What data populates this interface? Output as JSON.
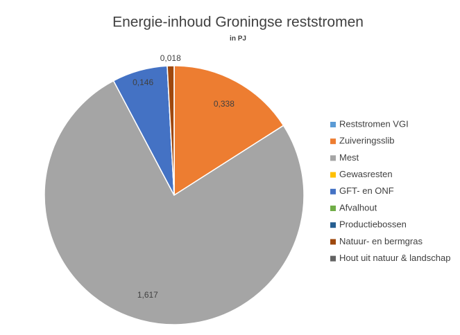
{
  "chart_data": {
    "type": "pie",
    "title": "Energie-inhoud Groningse reststromen",
    "subtitle": "in PJ",
    "categories": [
      "Reststromen VGI",
      "Zuiveringsslib",
      "Mest",
      "Gewasresten",
      "GFT- en ONF",
      "Afvalhout",
      "Productiebossen",
      "Natuur- en bermgras",
      "Hout uit natuur & landschap"
    ],
    "values": [
      0,
      0.338,
      1.617,
      0,
      0.146,
      0,
      0,
      0.018,
      0
    ],
    "value_labels": [
      null,
      "0,338",
      "1,617",
      null,
      "0,146",
      null,
      null,
      "0,018",
      null
    ],
    "colors": [
      "#5b9bd5",
      "#ed7d31",
      "#a5a5a5",
      "#ffc000",
      "#4472c4",
      "#70ad47",
      "#255e91",
      "#9e480e",
      "#636363"
    ],
    "legend": "right"
  }
}
